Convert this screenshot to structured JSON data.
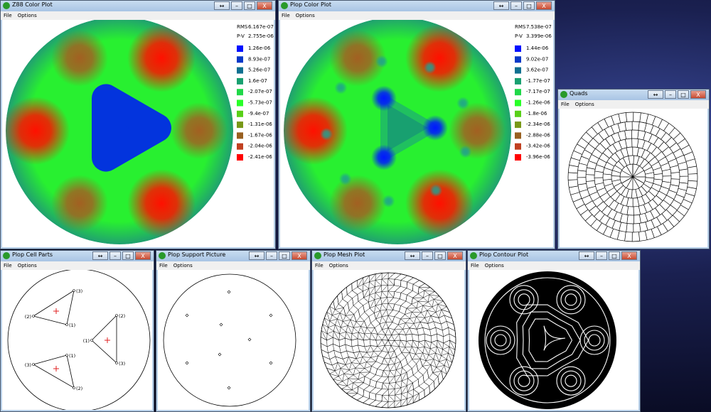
{
  "controls": [
    "↔",
    "–",
    "□",
    "X"
  ],
  "cell_labels": [
    "(1)",
    "(2)",
    "(3)"
  ],
  "windows": [
    {
      "title": "Z88 Color Plot",
      "menu": [
        "File",
        "Options"
      ],
      "legend": {
        "rms_label": "RMS",
        "rms": "6.167e-07",
        "pv_label": "P-V",
        "pv": "2.755e-06",
        "entries": [
          {
            "label": "1.26e-06",
            "color": "#0010ff"
          },
          {
            "label": "8.93e-07",
            "color": "#0838c8"
          },
          {
            "label": "5.26e-07",
            "color": "#107090"
          },
          {
            "label": "1.6e-07",
            "color": "#18a070"
          },
          {
            "label": "-2.07e-07",
            "color": "#20d848"
          },
          {
            "label": "-5.73e-07",
            "color": "#28ff28"
          },
          {
            "label": "-9.4e-07",
            "color": "#58d018"
          },
          {
            "label": "-1.31e-06",
            "color": "#789818"
          },
          {
            "label": "-1.67e-06",
            "color": "#986020"
          },
          {
            "label": "-2.04e-06",
            "color": "#c04020"
          },
          {
            "label": "-2.41e-06",
            "color": "#ff0000"
          }
        ]
      }
    },
    {
      "title": "Plop Color Plot",
      "menu": [
        "File",
        "Options"
      ],
      "legend": {
        "rms_label": "RMS",
        "rms": "7.538e-07",
        "pv_label": "P-V",
        "pv": "3.399e-06",
        "entries": [
          {
            "label": "1.44e-06",
            "color": "#0010ff"
          },
          {
            "label": "9.02e-07",
            "color": "#0838c8"
          },
          {
            "label": "3.62e-07",
            "color": "#107090"
          },
          {
            "label": "-1.77e-07",
            "color": "#18a070"
          },
          {
            "label": "-7.17e-07",
            "color": "#20d848"
          },
          {
            "label": "-1.26e-06",
            "color": "#28ff28"
          },
          {
            "label": "-1.8e-06",
            "color": "#58d018"
          },
          {
            "label": "-2.34e-06",
            "color": "#789818"
          },
          {
            "label": "-2.88e-06",
            "color": "#986020"
          },
          {
            "label": "-3.42e-06",
            "color": "#c04020"
          },
          {
            "label": "-3.96e-06",
            "color": "#ff0000"
          }
        ]
      }
    },
    {
      "title": "Quads",
      "menu": [
        "File",
        "Options"
      ]
    },
    {
      "title": "Plop Cell Parts",
      "menu": [
        "File",
        "Options"
      ]
    },
    {
      "title": "Plop Support Picture",
      "menu": [
        "File",
        "Options"
      ]
    },
    {
      "title": "Plop Mesh Plot",
      "menu": [
        "File",
        "Options"
      ]
    },
    {
      "title": "Plop Contour Plot",
      "menu": [
        "File",
        "Options"
      ]
    }
  ]
}
